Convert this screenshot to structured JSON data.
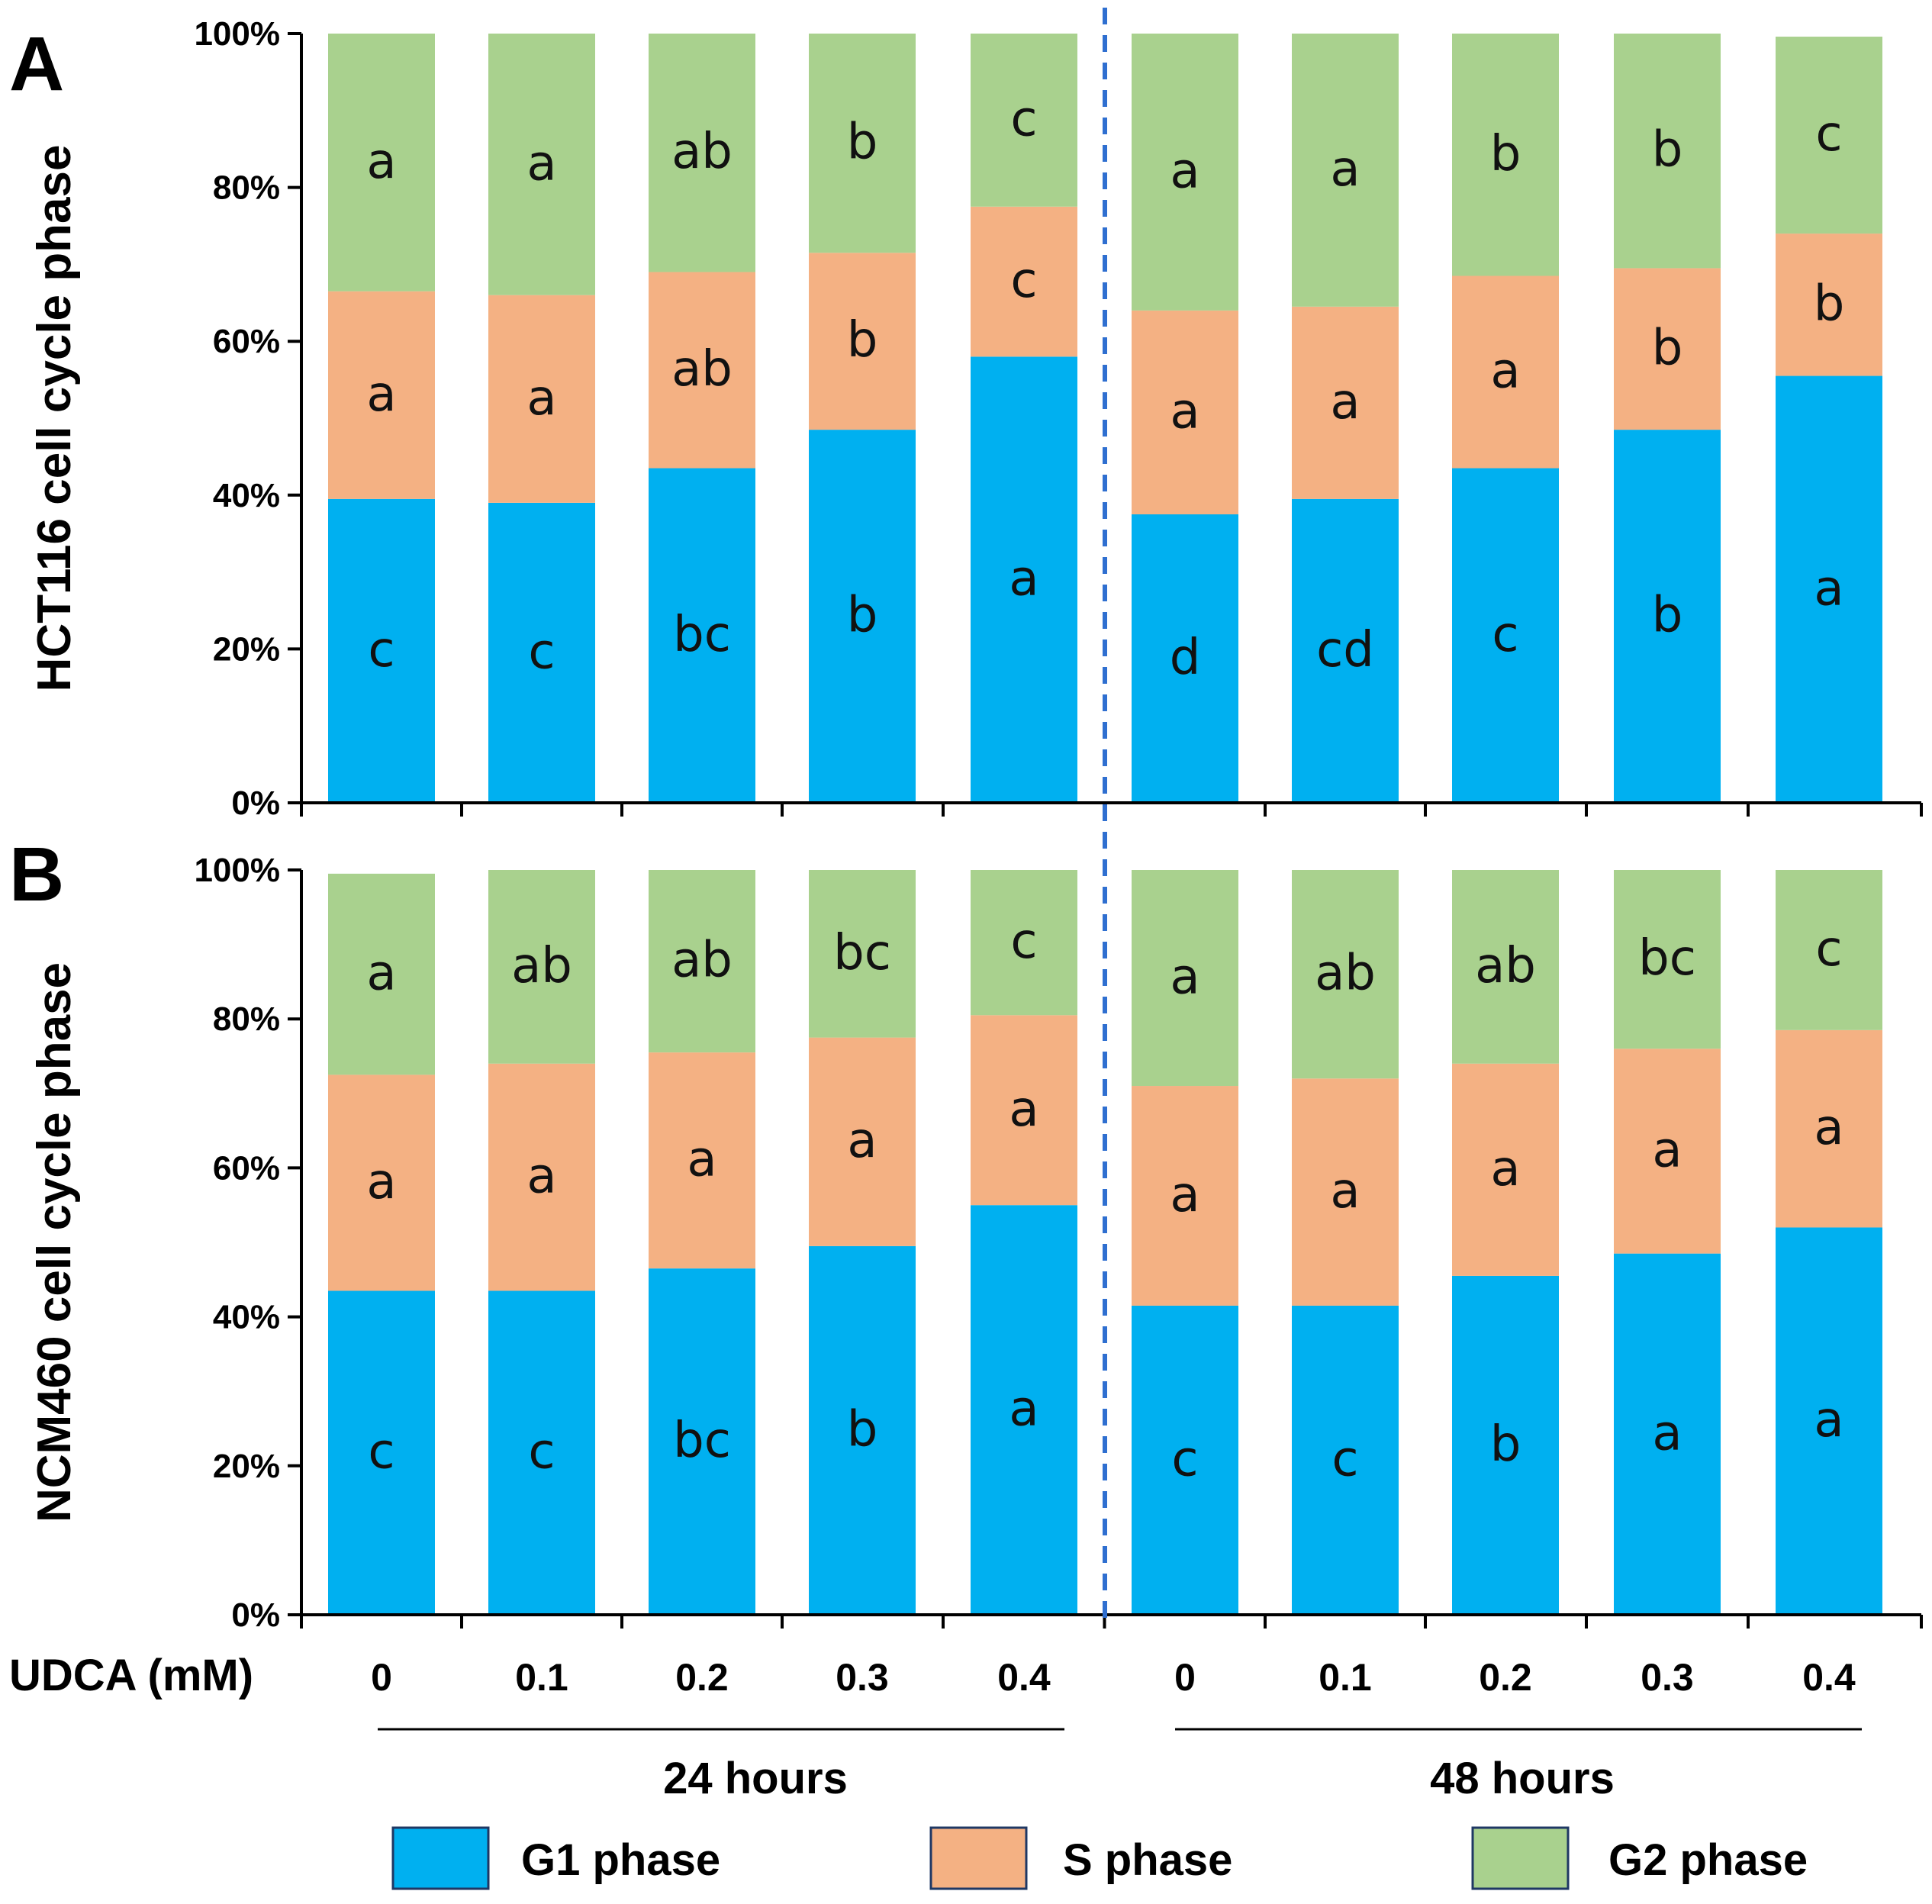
{
  "chart_data": [
    {
      "panel": "A",
      "type": "bar",
      "stacked": true,
      "normalized_percent": true,
      "ylabel": "HCT116 cell cycle phase",
      "yticks": [
        "0%",
        "20%",
        "40%",
        "60%",
        "80%",
        "100%"
      ],
      "ylim": [
        0,
        100
      ],
      "categories": [
        "0",
        "0.1",
        "0.2",
        "0.3",
        "0.4",
        "0",
        "0.1",
        "0.2",
        "0.3",
        "0.4"
      ],
      "series": [
        {
          "name": "G1 phase",
          "color": "#00b0f0",
          "values": [
            39.5,
            39,
            43.5,
            48.5,
            58,
            37.5,
            39.5,
            43.5,
            48.5,
            55.5
          ],
          "letters": [
            "c",
            "c",
            "bc",
            "b",
            "a",
            "d",
            "cd",
            "c",
            "b",
            "a"
          ]
        },
        {
          "name": "S phase",
          "color": "#f4b183",
          "values": [
            27,
            27,
            25.5,
            23,
            19.5,
            26.5,
            25,
            25,
            21,
            18.5
          ],
          "letters": [
            "a",
            "a",
            "ab",
            "b",
            "c",
            "a",
            "a",
            "a",
            "b",
            "b"
          ]
        },
        {
          "name": "G2 phase",
          "color": "#a9d18e",
          "values": [
            33.5,
            34,
            31,
            28.5,
            22.5,
            36,
            35.5,
            31.5,
            30.5,
            25.6
          ],
          "letters": [
            "a",
            "a",
            "ab",
            "b",
            "c",
            "a",
            "a",
            "b",
            "b",
            "c"
          ]
        }
      ]
    },
    {
      "panel": "B",
      "type": "bar",
      "stacked": true,
      "normalized_percent": true,
      "ylabel": "NCM460 cell cycle phase",
      "yticks": [
        "0%",
        "20%",
        "40%",
        "60%",
        "80%",
        "100%"
      ],
      "ylim": [
        0,
        100
      ],
      "categories": [
        "0",
        "0.1",
        "0.2",
        "0.3",
        "0.4",
        "0",
        "0.1",
        "0.2",
        "0.3",
        "0.4"
      ],
      "series": [
        {
          "name": "G1 phase",
          "color": "#00b0f0",
          "values": [
            43.5,
            43.5,
            46.5,
            49.5,
            55,
            41.5,
            41.5,
            45.5,
            48.5,
            52
          ],
          "letters": [
            "c",
            "c",
            "bc",
            "b",
            "a",
            "c",
            "c",
            "b",
            "a",
            "a"
          ]
        },
        {
          "name": "S phase",
          "color": "#f4b183",
          "values": [
            29,
            30.5,
            29,
            28,
            25.5,
            29.5,
            30.5,
            28.5,
            27.5,
            26.5
          ],
          "letters": [
            "a",
            "a",
            "a",
            "a",
            "a",
            "a",
            "a",
            "a",
            "a",
            "a"
          ]
        },
        {
          "name": "G2 phase",
          "color": "#a9d18e",
          "values": [
            27,
            26,
            24.5,
            22.5,
            19.5,
            29,
            28,
            26,
            24,
            21.5
          ],
          "letters": [
            "a",
            "ab",
            "ab",
            "bc",
            "c",
            "a",
            "ab",
            "ab",
            "bc",
            "c"
          ]
        }
      ]
    }
  ],
  "x_axis": {
    "label": "UDCA (mM)",
    "tick_labels": [
      "0",
      "0.1",
      "0.2",
      "0.3",
      "0.4",
      "0",
      "0.1",
      "0.2",
      "0.3",
      "0.4"
    ],
    "groups": [
      {
        "label": "24 hours"
      },
      {
        "label": "48 hours"
      }
    ]
  },
  "legend": [
    {
      "label": "G1 phase",
      "color": "#00b0f0"
    },
    {
      "label": "S phase",
      "color": "#f4b183"
    },
    {
      "label": "G2 phase",
      "color": "#a9d18e"
    }
  ],
  "colors": {
    "divider": "#2f6fd0",
    "axis": "#000000",
    "letter": "#111111"
  }
}
